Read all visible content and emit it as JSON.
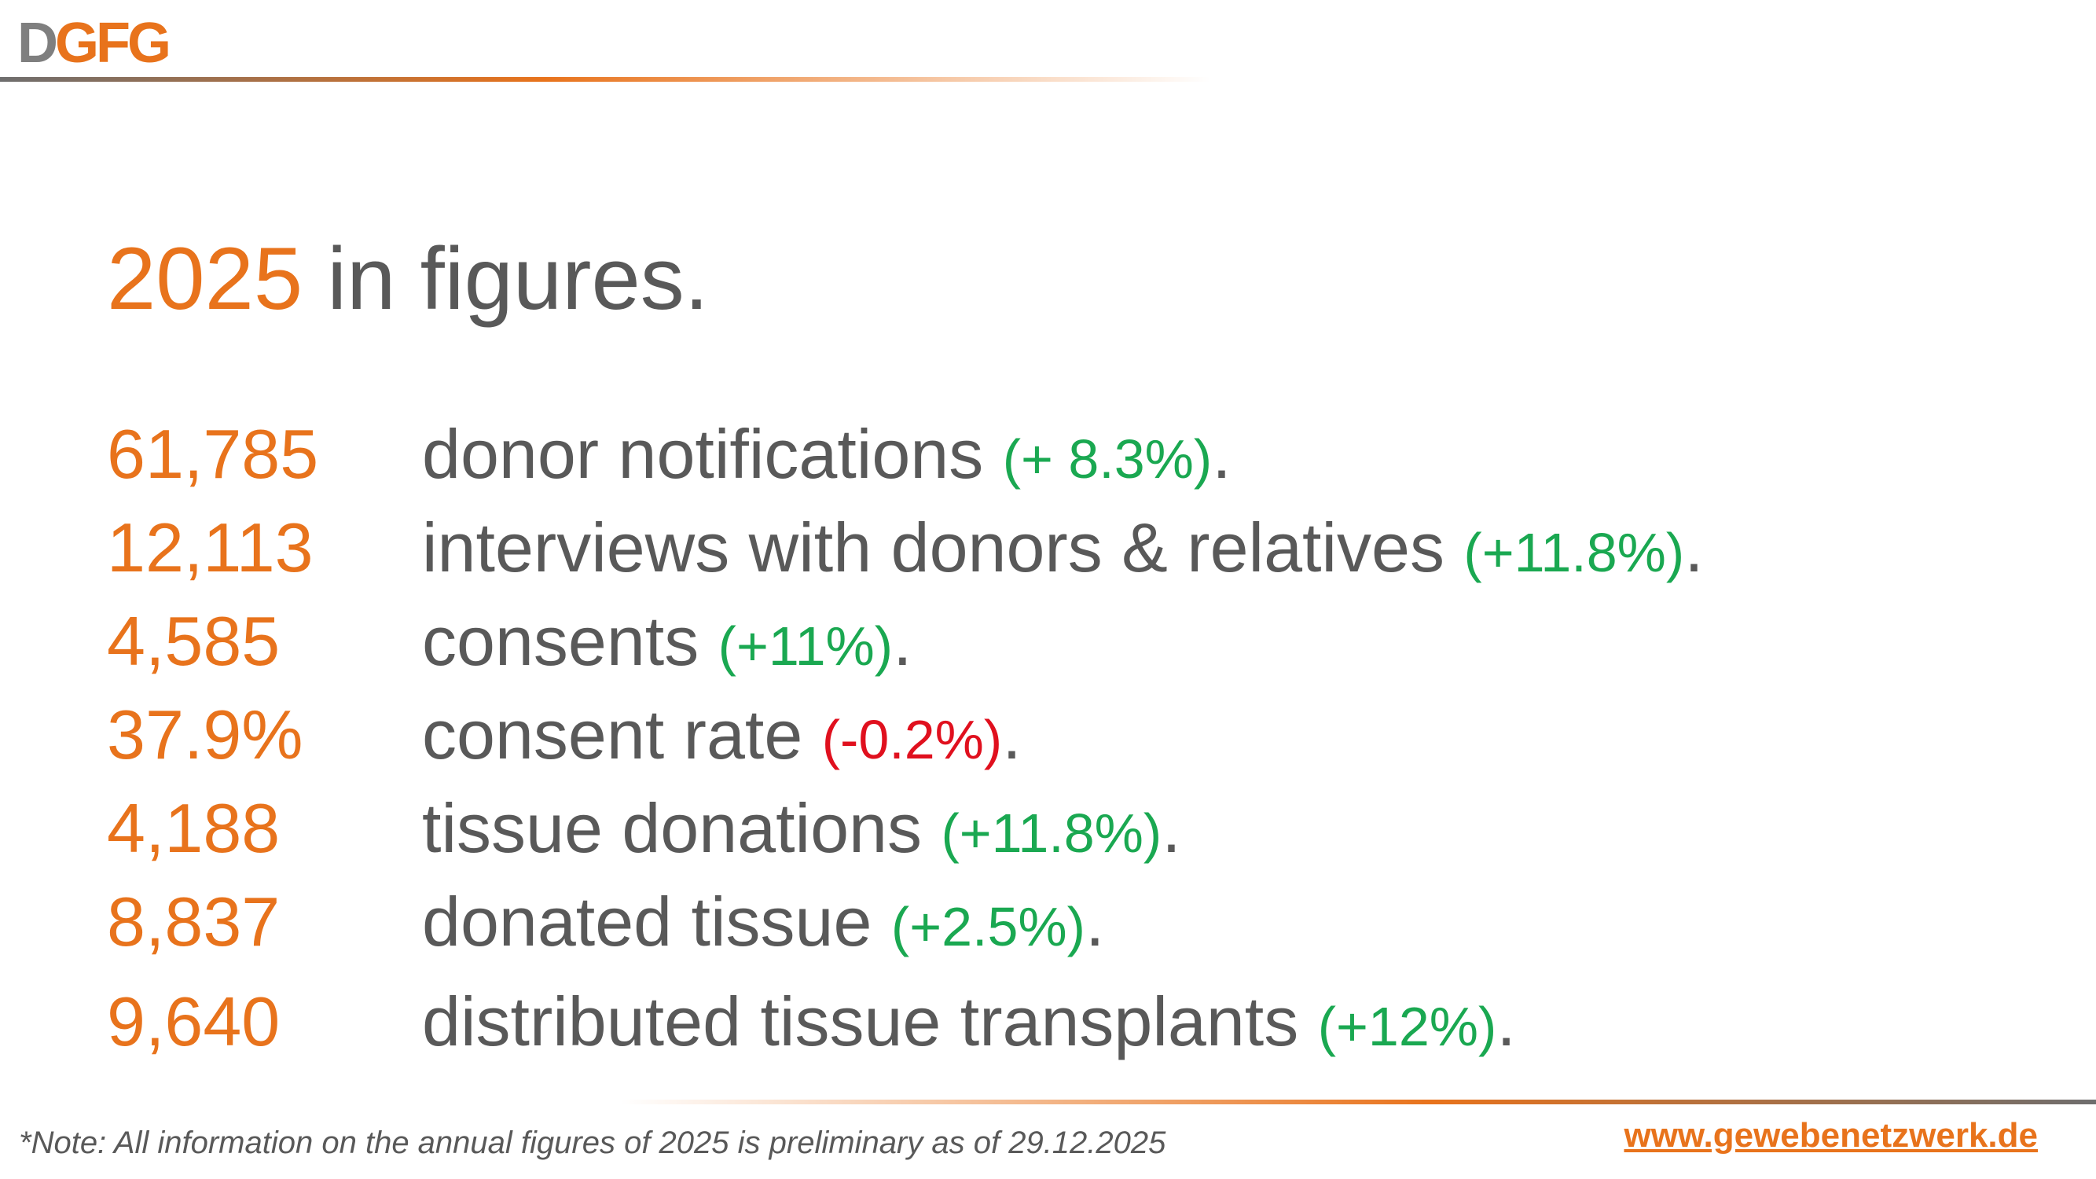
{
  "logo": {
    "first": "D",
    "rest": "GFG"
  },
  "title": {
    "year": "2025",
    "text": " in figures",
    "end": "."
  },
  "rows": [
    {
      "number": "61,785",
      "label": "donor notifications ",
      "change": "(+ 8.3%)",
      "change_color": "#1aa851",
      "end": "."
    },
    {
      "number": "12,113",
      "label": "interviews with donors & relatives ",
      "change": "(+11.8%)",
      "change_color": "#1aa851",
      "end": "."
    },
    {
      "number": "4,585",
      "label": "consents ",
      "change": "(+11%)",
      "change_color": "#1aa851",
      "end": "."
    },
    {
      "number": "37.9%",
      "label": "consent rate ",
      "change": "(-0.2%)",
      "change_color": "#e0101e",
      "end": "."
    },
    {
      "number": "4,188",
      "label": "tissue donations ",
      "change": "(+11.8%)",
      "change_color": "#1aa851",
      "end": "."
    },
    {
      "number": "8,837",
      "label": "donated tissue ",
      "change": "(+2.5%)",
      "change_color": "#1aa851",
      "end": "."
    },
    {
      "number": "9,640",
      "label": "distributed tissue transplants ",
      "change": "(+12%)",
      "change_color": "#1aa851",
      "end": "."
    }
  ],
  "footer": {
    "note": "*Note: All information on the annual figures of 2025 is preliminary as of 29.12.2025",
    "url": "www.gewebenetzwerk.de"
  }
}
